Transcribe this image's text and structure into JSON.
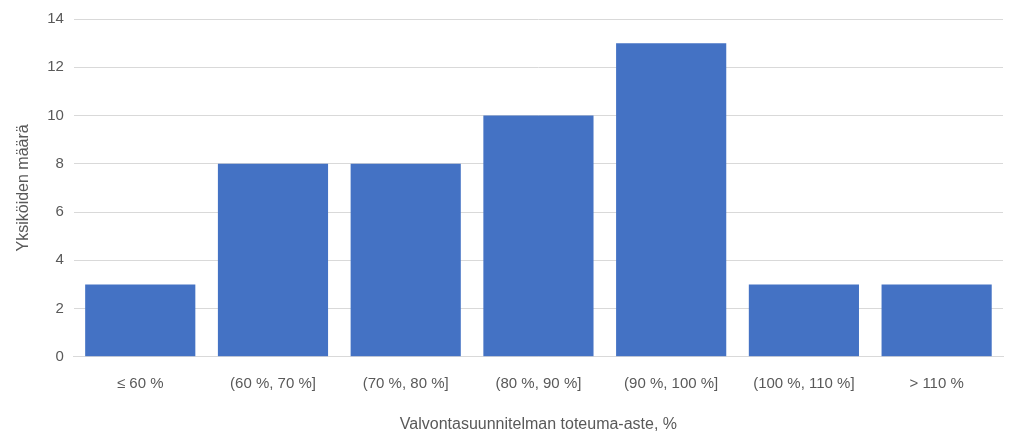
{
  "chart_data": {
    "type": "bar",
    "x_label": "Valvontasuunnitelman toteuma-aste, %",
    "y_label": "Yksiköiden määrä",
    "categories": [
      "≤ 60 %",
      "(60 %, 70 %]",
      "(70 %, 80 %]",
      "(80 %, 90 %]",
      "(90 %, 100 %]",
      "(100 %, 110 %]",
      "> 110 %"
    ],
    "values": [
      3,
      8,
      8,
      10,
      13,
      3,
      3
    ],
    "color": "#4472c4",
    "ylim": [
      0,
      14
    ],
    "yticks": [
      0,
      2,
      4,
      6,
      8,
      10,
      12,
      14
    ],
    "grid": true
  }
}
